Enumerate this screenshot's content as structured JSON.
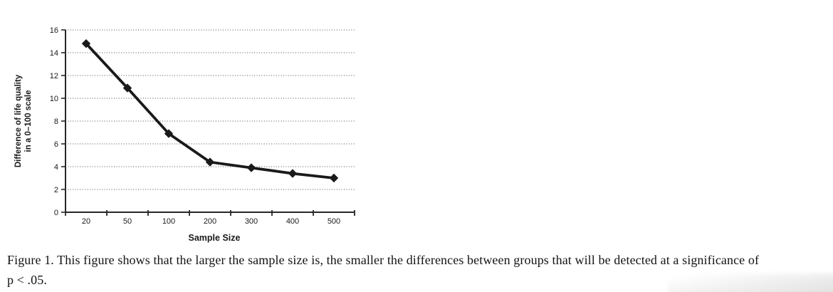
{
  "page": {
    "background": "#ffffff"
  },
  "figure": {
    "caption": {
      "line1": "Figure 1. This figure shows that the larger the sample size is, the smaller the differences between groups that will be detected at a significance of",
      "line2": "p < .05."
    }
  },
  "chart_data": {
    "type": "line",
    "title": "",
    "categories": [
      "20",
      "50",
      "100",
      "200",
      "300",
      "400",
      "500"
    ],
    "series": [
      {
        "name": "Difference of life quality",
        "values": [
          14.8,
          10.9,
          6.9,
          4.4,
          3.9,
          3.4,
          3.0
        ]
      }
    ],
    "xlabel": "Sample Size",
    "ylabel": "Difference of life quality in a 0–100 scale",
    "ylabel_line1": "Difference of life quality",
    "ylabel_line2": "in a 0–100 scale",
    "ylim": [
      0,
      16
    ],
    "yticks": [
      0,
      2,
      4,
      6,
      8,
      10,
      12,
      14,
      16
    ],
    "grid": "horizontal dotted",
    "legend": "none",
    "marker": "diamond",
    "colors": {
      "line": "#1a1a1a",
      "marker": "#1a1a1a",
      "gridline": "#4d4d4d",
      "axis": "#262626",
      "text": "#1a1a1a"
    }
  }
}
